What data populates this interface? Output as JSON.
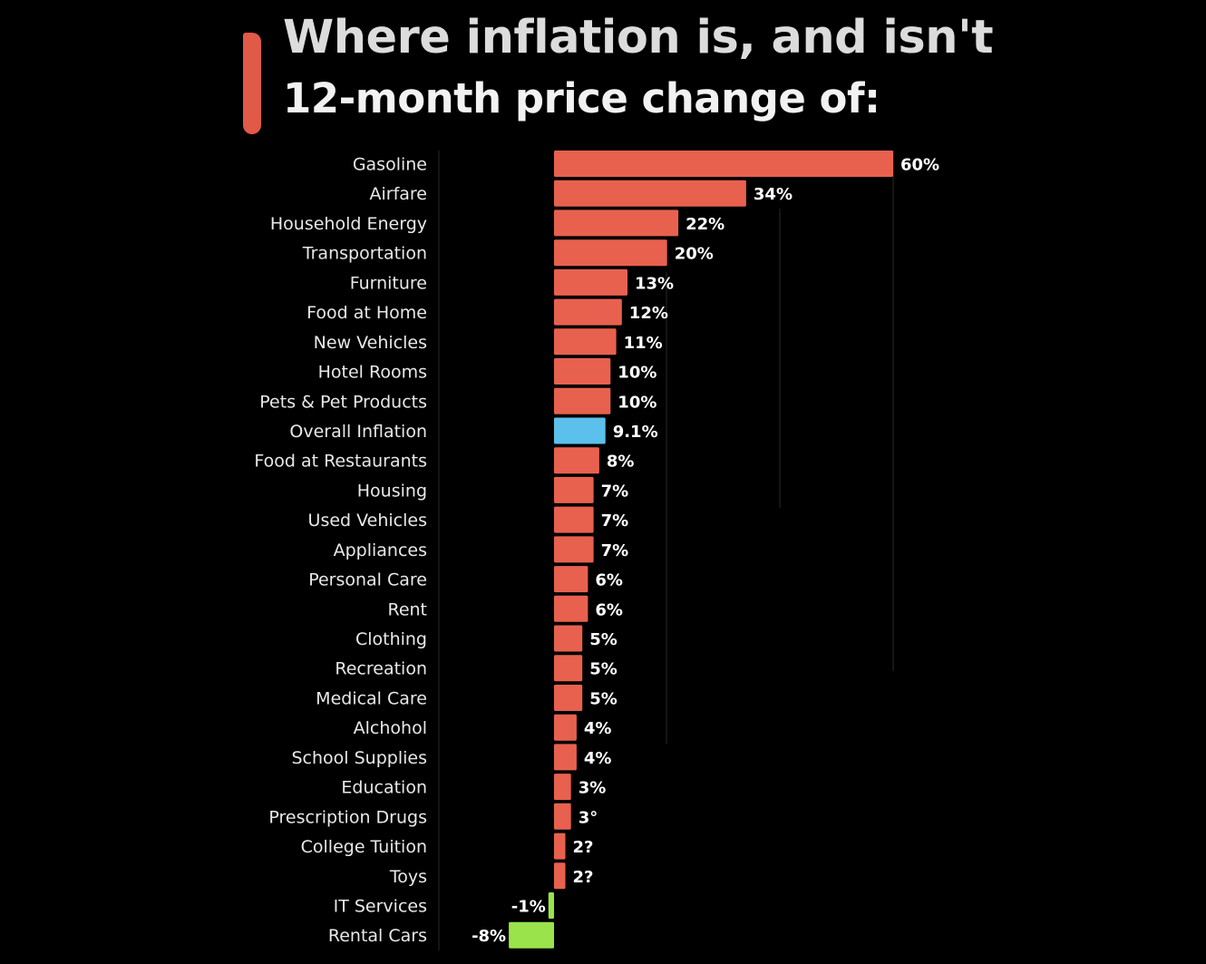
{
  "header": {
    "title": "Where inflation is, and isn't",
    "subtitle": "12-month price change of:"
  },
  "colors": {
    "accent": "#e05a47",
    "bar_default": "#e8614e",
    "bar_highlight": "#5bc0eb",
    "bar_negative": "#9be34b",
    "gridline": "#1c1c1c"
  },
  "chart_data": {
    "type": "bar",
    "orientation": "horizontal",
    "title": "Where inflation is, and isn't",
    "subtitle": "12-month price change of:",
    "xlabel": "",
    "ylabel": "",
    "xlim": [
      -8,
      60
    ],
    "highlight": "Overall Inflation",
    "categories": [
      "Gasoline",
      "Airfare",
      "Household Energy",
      "Transportation",
      "Furniture",
      "Food at Home",
      "New Vehicles",
      "Hotel Rooms",
      "Pets & Pet Products",
      "Overall Inflation",
      "Food at Restaurants",
      "Housing",
      "Used Vehicles",
      "Appliances",
      "Personal Care",
      "Rent",
      "Clothing",
      "Recreation",
      "Medical Care",
      "Alchohol",
      "School Supplies",
      "Education",
      "Prescription Drugs",
      "College Tuition",
      "Toys",
      "IT Services",
      "Rental Cars"
    ],
    "values": [
      60,
      34,
      22,
      20,
      13,
      12,
      11,
      10,
      10,
      9.1,
      8,
      7,
      7,
      7,
      6,
      6,
      5,
      5,
      5,
      4,
      4,
      3,
      3,
      2,
      2,
      -1,
      -8
    ],
    "value_labels": [
      "60%",
      "34%",
      "22%",
      "20%",
      "13%",
      "12%",
      "11%",
      "10%",
      "10%",
      "9.1%",
      "8%",
      "7%",
      "7%",
      "7%",
      "6%",
      "6%",
      "5%",
      "5%",
      "5%",
      "4%",
      "4%",
      "3%",
      "3°",
      "2?",
      "2?",
      "-1%",
      "-8%"
    ]
  }
}
